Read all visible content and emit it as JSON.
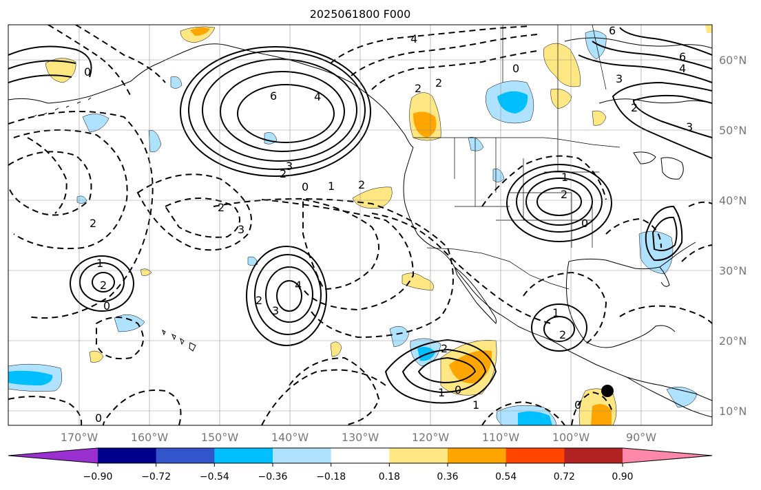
{
  "title": "2025061800 F000",
  "lat_labels": [
    "60°N",
    "50°N",
    "40°N",
    "30°N",
    "20°N",
    "10°N"
  ],
  "lon_labels": [
    "170°W",
    "160°W",
    "150°W",
    "140°W",
    "130°W",
    "120°W",
    "110°W",
    "100°W",
    "90°W"
  ],
  "colorbar": {
    "ticks": [
      "−0.90",
      "−0.72",
      "−0.54",
      "−0.36",
      "−0.18",
      "0.18",
      "0.36",
      "0.54",
      "0.72",
      "0.90"
    ],
    "colors": [
      "#9b30d0",
      "#00008b",
      "#3355cc",
      "#00bfff",
      "#aee2ff",
      "#ffffff",
      "#ffe784",
      "#ffa500",
      "#ff4500",
      "#b22222",
      "#ff88aa"
    ]
  },
  "contour_labels": {
    "gulf_high": [
      "6",
      "4",
      "3",
      "2"
    ],
    "midwest_high": [
      "1",
      "2",
      "0"
    ],
    "low_140w": [
      "4",
      "3",
      "2"
    ],
    "low_165w": [
      "1",
      "2",
      "0"
    ],
    "mexico_low": [
      "1",
      "2",
      "0"
    ],
    "mexico_high2": [
      "1",
      "2"
    ],
    "other_neg": [
      "2",
      "3",
      "2",
      "0",
      "1",
      "2",
      "0",
      "0",
      "1"
    ],
    "north_labels": [
      "6",
      "6",
      "4",
      "3",
      "2",
      "3",
      "4",
      "2",
      "2",
      "0",
      "0"
    ]
  },
  "marker": "black-dot"
}
